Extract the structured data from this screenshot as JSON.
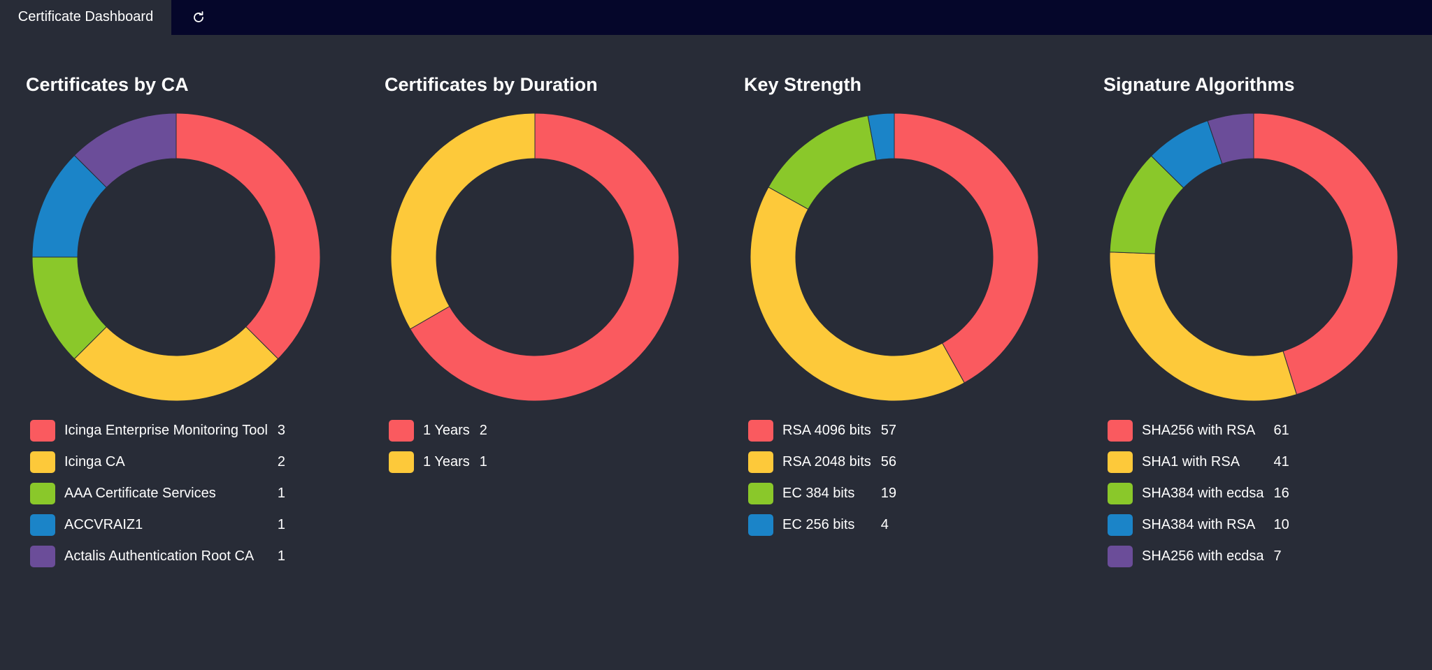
{
  "tab": {
    "title": "Certificate Dashboard"
  },
  "chart_data": [
    {
      "type": "pie",
      "title": "Certificates by CA",
      "categories": [
        "Icinga Enterprise Monitoring Tool",
        "Icinga CA",
        "AAA Certificate Services",
        "ACCVRAIZ1",
        "Actalis Authentication Root CA"
      ],
      "values": [
        3,
        2,
        1,
        1,
        1
      ],
      "colors": [
        "#fa5a5f",
        "#fdc93a",
        "#8ac82a",
        "#1b84c8",
        "#6b4d99"
      ]
    },
    {
      "type": "pie",
      "title": "Certificates by Duration",
      "categories": [
        "1 Years",
        "1 Years"
      ],
      "values": [
        2,
        1
      ],
      "colors": [
        "#fa5a5f",
        "#fdc93a"
      ]
    },
    {
      "type": "pie",
      "title": "Key Strength",
      "categories": [
        "RSA 4096 bits",
        "RSA 2048 bits",
        "EC 384 bits",
        "EC 256 bits"
      ],
      "values": [
        57,
        56,
        19,
        4
      ],
      "colors": [
        "#fa5a5f",
        "#fdc93a",
        "#8ac82a",
        "#1b84c8"
      ]
    },
    {
      "type": "pie",
      "title": "Signature Algorithms",
      "categories": [
        "SHA256 with RSA",
        "SHA1 with RSA",
        "SHA384 with ecdsa",
        "SHA384 with RSA",
        "SHA256 with ecdsa"
      ],
      "values": [
        61,
        41,
        16,
        10,
        7
      ],
      "colors": [
        "#fa5a5f",
        "#fdc93a",
        "#8ac82a",
        "#1b84c8",
        "#6b4d99"
      ]
    }
  ]
}
